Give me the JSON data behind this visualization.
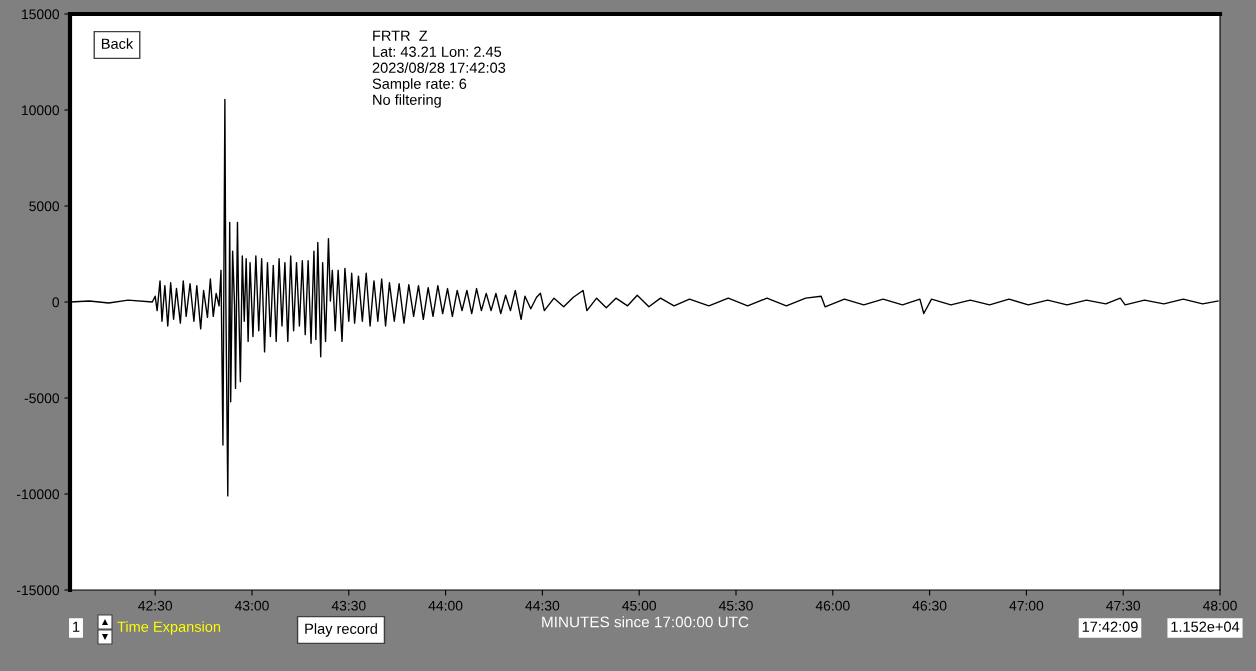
{
  "chart_data": {
    "type": "line",
    "xlabel": "MINUTES since 17:00:00 UTC",
    "annotations": [
      "FRTR  Z",
      "Lat: 43.21 Lon: 2.45",
      "2023/08/28 17:42:03",
      "Sample rate: 6",
      "No filtering",
      "Back",
      "1",
      "Time Expansion",
      "Play record",
      "17:42:09",
      "1.152e+04"
    ],
    "xlim": [
      42.06,
      48.0
    ],
    "ylim": [
      -15000,
      15000
    ],
    "xticks": [
      {
        "value": 42.5,
        "label": "42:30"
      },
      {
        "value": 43,
        "label": "43:00"
      },
      {
        "value": 43.5,
        "label": "43:30"
      },
      {
        "value": 44,
        "label": "44:00"
      },
      {
        "value": 44.5,
        "label": "44:30"
      },
      {
        "value": 45,
        "label": "45:00"
      },
      {
        "value": 45.5,
        "label": "45:30"
      },
      {
        "value": 46,
        "label": "46:00"
      },
      {
        "value": 46.5,
        "label": "46:30"
      },
      {
        "value": 47,
        "label": "47:00"
      },
      {
        "value": 47.5,
        "label": "47:30"
      },
      {
        "value": 48,
        "label": "48:00"
      }
    ],
    "yticks": [
      -15000,
      -10000,
      -5000,
      0,
      5000,
      10000,
      15000
    ],
    "grid": false,
    "marker": "none",
    "line_style": "solid",
    "series": [
      {
        "color": "#000000",
        "x": [
          42.06,
          42.16,
          42.26,
          42.36,
          42.485,
          42.5,
          42.51,
          42.525,
          42.535,
          42.55,
          42.565,
          42.58,
          42.595,
          42.61,
          42.63,
          42.645,
          42.66,
          42.68,
          42.7,
          42.715,
          42.735,
          42.75,
          42.77,
          42.785,
          42.8,
          42.815,
          42.83,
          42.84,
          42.85,
          42.86,
          42.865,
          42.875,
          42.885,
          42.89,
          42.9,
          42.91,
          42.915,
          42.925,
          42.93,
          42.94,
          42.95,
          42.96,
          42.97,
          42.98,
          42.99,
          43.005,
          43.02,
          43.035,
          43.05,
          43.065,
          43.08,
          43.095,
          43.11,
          43.125,
          43.14,
          43.155,
          43.17,
          43.185,
          43.2,
          43.215,
          43.23,
          43.245,
          43.26,
          43.275,
          43.29,
          43.305,
          43.32,
          43.33,
          43.34,
          43.355,
          43.365,
          43.38,
          43.395,
          43.405,
          43.415,
          43.43,
          43.445,
          43.465,
          43.48,
          43.5,
          43.515,
          43.53,
          43.55,
          43.57,
          43.59,
          43.61,
          43.63,
          43.65,
          43.67,
          43.69,
          43.71,
          43.735,
          43.76,
          43.785,
          43.81,
          43.835,
          43.86,
          43.885,
          43.91,
          43.935,
          43.96,
          43.985,
          44.01,
          44.035,
          44.06,
          44.085,
          44.11,
          44.135,
          44.16,
          44.185,
          44.21,
          44.235,
          44.26,
          44.285,
          44.31,
          44.335,
          44.36,
          44.39,
          44.41,
          44.44,
          44.47,
          44.49,
          44.51,
          44.56,
          44.61,
          44.66,
          44.71,
          44.73,
          44.78,
          44.83,
          44.88,
          44.94,
          44.99,
          45.05,
          45.11,
          45.18,
          45.26,
          45.36,
          45.46,
          45.56,
          45.66,
          45.76,
          45.86,
          45.94,
          45.96,
          46.06,
          46.16,
          46.26,
          46.36,
          46.45,
          46.47,
          46.51,
          46.61,
          46.71,
          46.81,
          46.91,
          47.01,
          47.11,
          47.21,
          47.31,
          47.41,
          47.485,
          47.51,
          47.61,
          47.71,
          47.81,
          47.91,
          47.99
        ],
        "values": [
          0,
          50,
          -50,
          100,
          0,
          300,
          -450,
          1100,
          -1000,
          850,
          -1250,
          1000,
          -900,
          700,
          -1100,
          1100,
          -750,
          950,
          -1000,
          850,
          -1400,
          600,
          -800,
          1200,
          -750,
          450,
          -200,
          1650,
          -7450,
          10550,
          50,
          -10100,
          4150,
          -5200,
          2650,
          -200,
          -4500,
          4150,
          600,
          -4150,
          2400,
          -1000,
          2250,
          -2050,
          2050,
          -1800,
          2400,
          -1500,
          2250,
          -2600,
          2050,
          -1800,
          1900,
          -2050,
          2250,
          -1250,
          2050,
          -2050,
          2400,
          -1500,
          2050,
          -1250,
          2150,
          -1700,
          2150,
          -2150,
          2650,
          -1950,
          3100,
          -2850,
          2050,
          -2050,
          3300,
          50,
          1650,
          -1500,
          1650,
          -2050,
          1750,
          -1000,
          1500,
          -1100,
          1350,
          -1000,
          1500,
          -1250,
          1100,
          -1000,
          1200,
          -1250,
          1000,
          -1000,
          950,
          -1100,
          900,
          -750,
          850,
          -900,
          750,
          -750,
          850,
          -600,
          700,
          -750,
          600,
          -450,
          600,
          -600,
          700,
          -450,
          450,
          -450,
          450,
          -600,
          350,
          -450,
          600,
          -900,
          300,
          -350,
          250,
          450,
          -450,
          200,
          -250,
          250,
          600,
          -450,
          200,
          -300,
          200,
          -200,
          350,
          -250,
          200,
          -200,
          150,
          -200,
          200,
          -200,
          200,
          -200,
          200,
          300,
          -250,
          150,
          -150,
          150,
          -150,
          150,
          -600,
          150,
          -150,
          100,
          -150,
          150,
          -150,
          100,
          -150,
          100,
          -100,
          200,
          -150,
          100,
          -100,
          150,
          -100,
          50
        ]
      }
    ]
  }
}
